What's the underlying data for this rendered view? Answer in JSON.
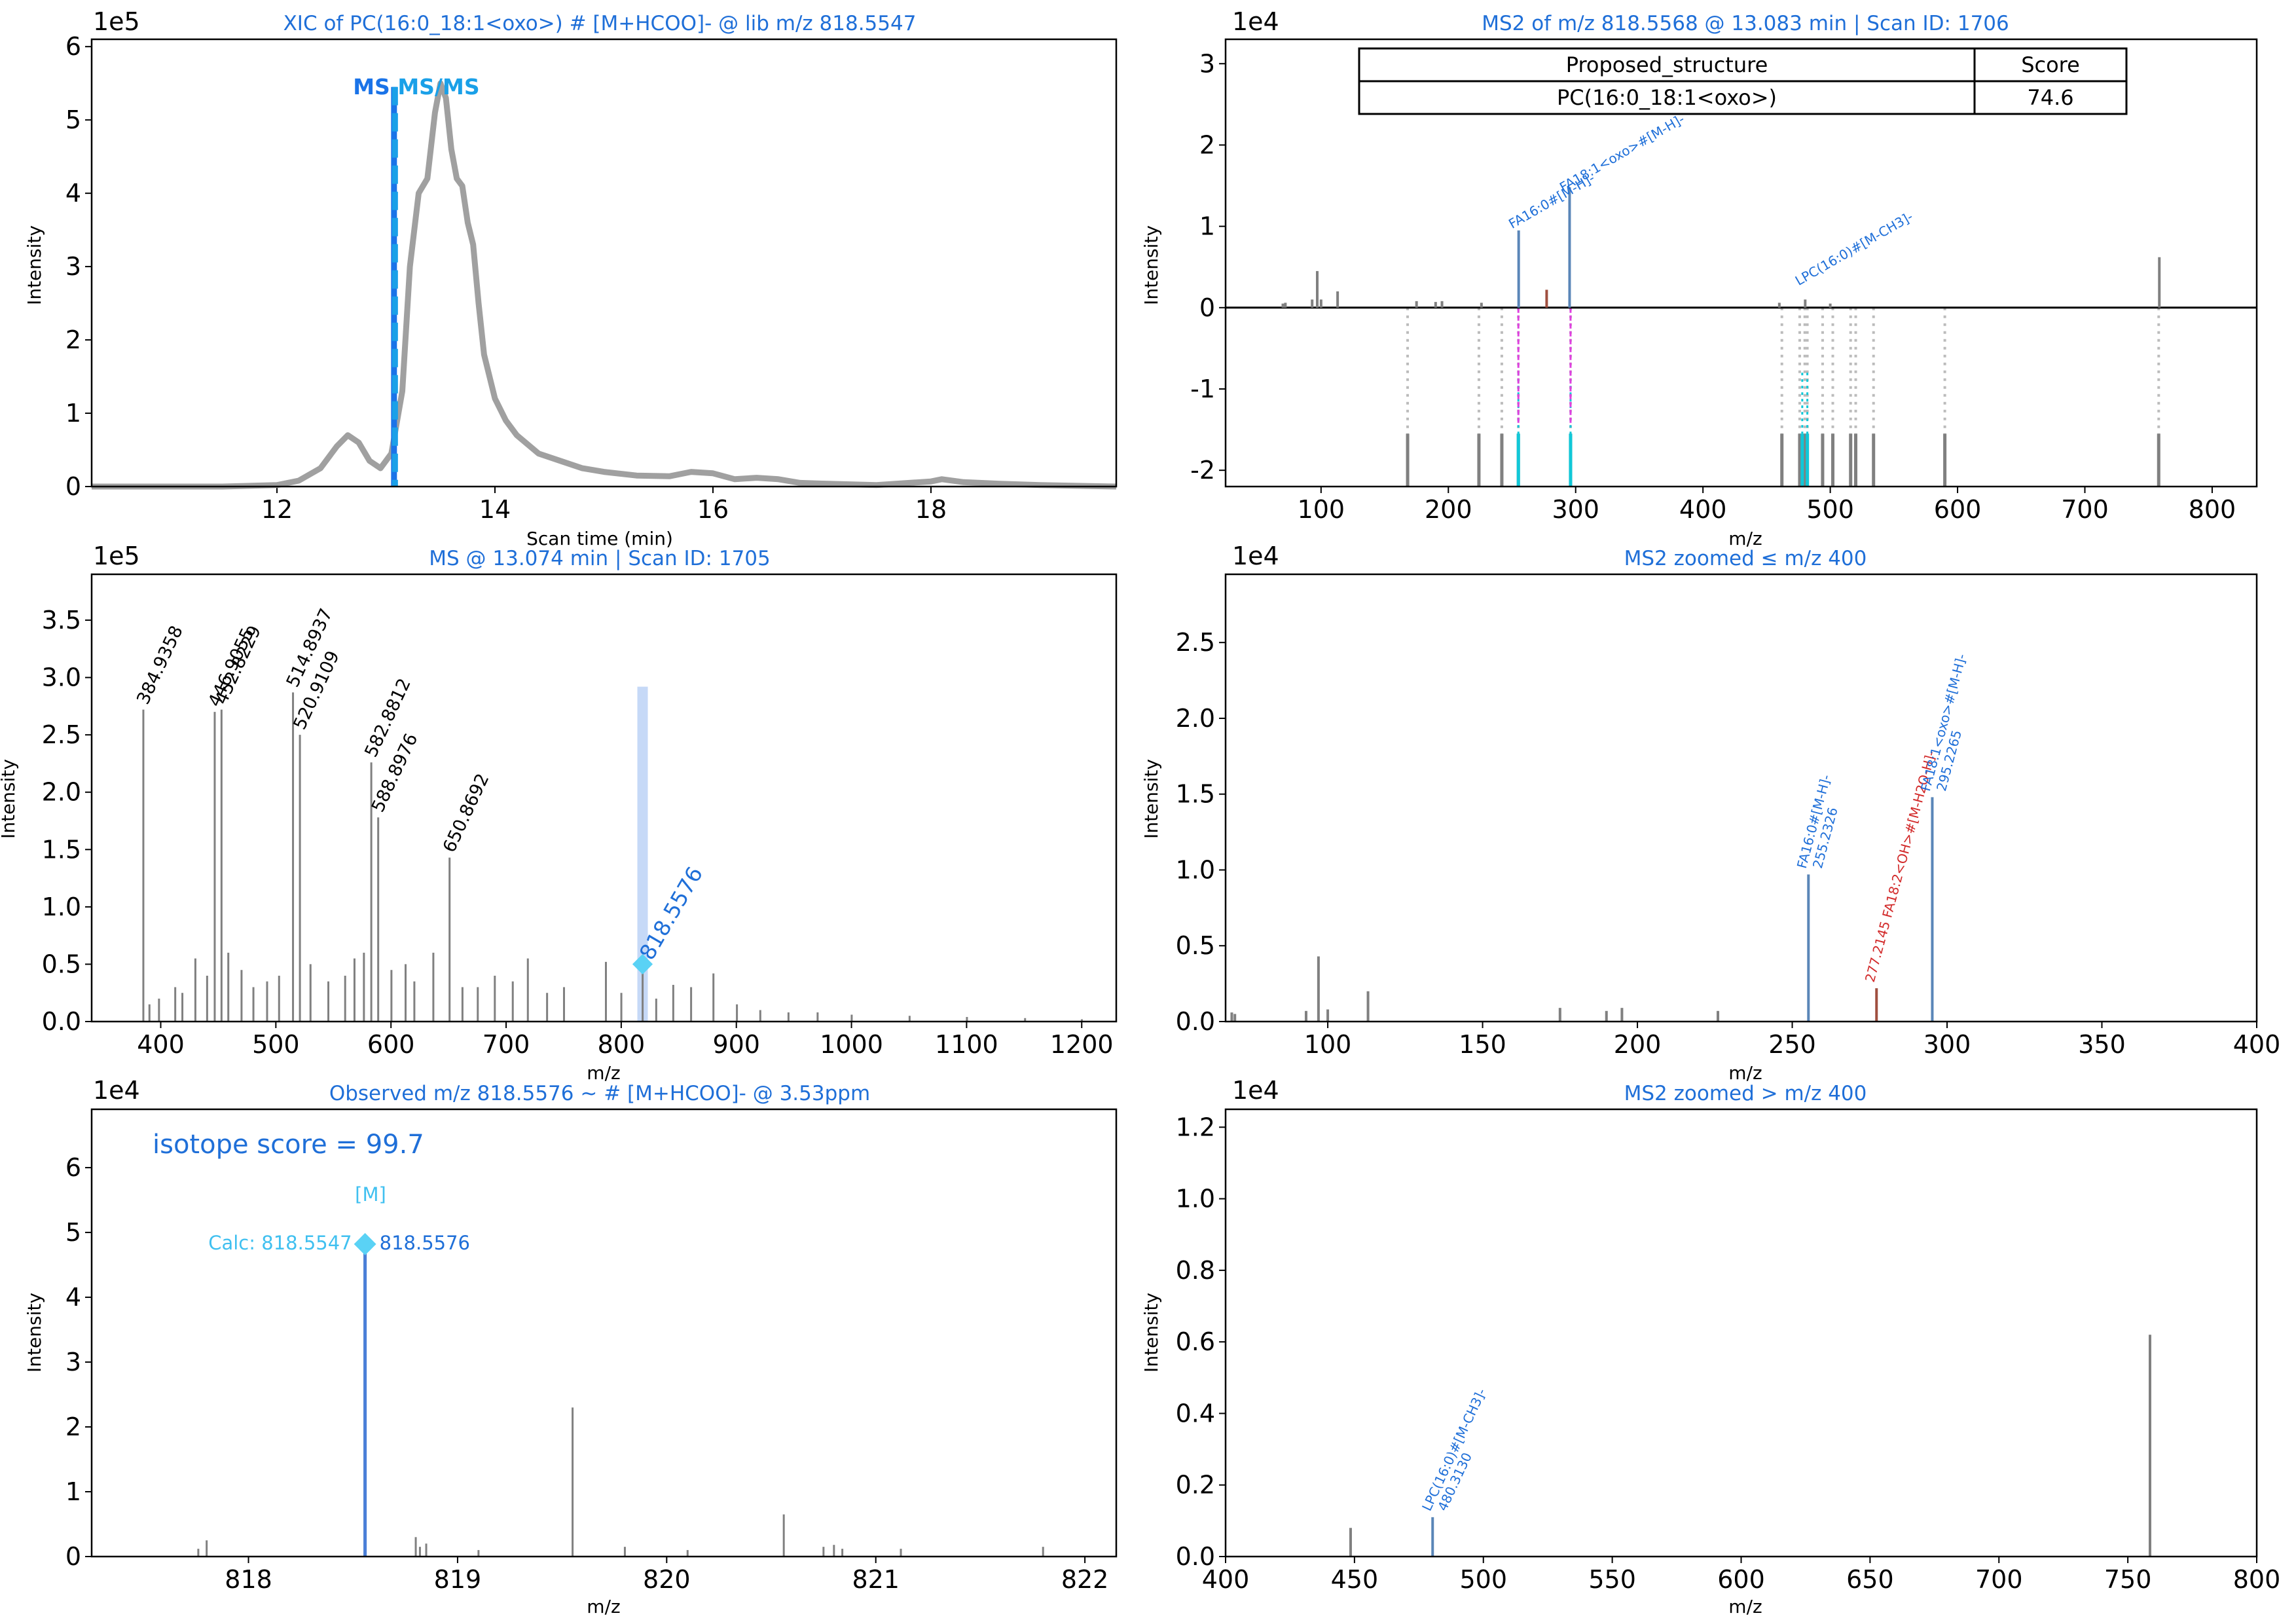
{
  "colors": {
    "spectrum": "#808080",
    "xic": "#a0a0a0",
    "title": "#1f6fd8",
    "ms_marker": "#1a73e8",
    "msms_marker": "#1aa0e8",
    "match_blue": "#5a86b8",
    "match_red": "#d22a2a",
    "precursor": "#5ad2f5",
    "ref_cyan": "#10c8d8",
    "ref_magenta": "#e040e0",
    "dotted": "#bbbbbb",
    "highlight": "#c6d9f7"
  },
  "chart_data": [
    {
      "id": "xic",
      "type": "line",
      "title": "XIC of PC(16:0_18:1<oxo>) # [M+HCOO]- @ lib m/z 818.5547",
      "xlabel": "Scan time (min)",
      "ylabel": "Intensity",
      "y_exponent": "1e5",
      "xlim": [
        10.3,
        19.7
      ],
      "ylim": [
        0,
        6.1
      ],
      "xticks": [
        12,
        14,
        16,
        18
      ],
      "yticks": [
        0,
        1,
        2,
        3,
        4,
        5,
        6
      ],
      "markers": [
        {
          "label": "MS",
          "x": 13.074
        },
        {
          "label": "MS/MS",
          "x": 13.083
        }
      ],
      "series": [
        {
          "x": [
            10.3,
            11.5,
            12.0,
            12.2,
            12.4,
            12.55,
            12.65,
            12.75,
            12.85,
            12.95,
            13.05,
            13.15,
            13.22,
            13.3,
            13.38,
            13.45,
            13.5,
            13.55,
            13.6,
            13.65,
            13.7,
            13.75,
            13.8,
            13.85,
            13.9,
            14.0,
            14.1,
            14.2,
            14.4,
            14.6,
            14.8,
            15.0,
            15.3,
            15.6,
            15.8,
            16.0,
            16.2,
            16.4,
            16.6,
            16.8,
            17.0,
            17.5,
            18.0,
            18.1,
            18.3,
            18.6,
            19.0,
            19.7
          ],
          "y": [
            0.0,
            0.0,
            0.02,
            0.08,
            0.25,
            0.55,
            0.7,
            0.6,
            0.35,
            0.25,
            0.45,
            1.3,
            3.0,
            4.0,
            4.2,
            5.1,
            5.5,
            5.3,
            4.6,
            4.2,
            4.1,
            3.6,
            3.3,
            2.5,
            1.8,
            1.2,
            0.9,
            0.7,
            0.45,
            0.35,
            0.25,
            0.2,
            0.15,
            0.14,
            0.2,
            0.18,
            0.1,
            0.12,
            0.1,
            0.05,
            0.04,
            0.02,
            0.07,
            0.1,
            0.06,
            0.04,
            0.02,
            0.0
          ]
        }
      ]
    },
    {
      "id": "ms",
      "type": "bar",
      "title": "MS @ 13.074 min | Scan ID: 1705",
      "xlabel": "m/z",
      "ylabel": "Intensity",
      "y_exponent": "1e5",
      "xlim": [
        340,
        1230
      ],
      "ylim": [
        0,
        3.9
      ],
      "xticks": [
        400,
        500,
        600,
        700,
        800,
        900,
        1000,
        1100,
        1200
      ],
      "yticks": [
        0.0,
        0.5,
        1.0,
        1.5,
        2.0,
        2.5,
        3.0,
        3.5
      ],
      "highlight": {
        "x": 818.5576,
        "height": 2.92
      },
      "precursor": {
        "x": 818.5576,
        "y": 0.5,
        "label": "818.5576"
      },
      "labels": [
        {
          "x": 384.9358,
          "y": 2.72,
          "text": "384.9358"
        },
        {
          "x": 446.9055,
          "y": 2.7,
          "text": "446.9055"
        },
        {
          "x": 452.8229,
          "y": 2.72,
          "text": "452.8229"
        },
        {
          "x": 514.8937,
          "y": 2.87,
          "text": "514.8937"
        },
        {
          "x": 520.9109,
          "y": 2.5,
          "text": "520.9109"
        },
        {
          "x": 582.8812,
          "y": 2.26,
          "text": "582.8812"
        },
        {
          "x": 588.8976,
          "y": 1.78,
          "text": "588.8976"
        },
        {
          "x": 650.8692,
          "y": 1.43,
          "text": "650.8692"
        }
      ],
      "peaks": [
        [
          384.9,
          2.72
        ],
        [
          390.2,
          0.15
        ],
        [
          398.5,
          0.2
        ],
        [
          412.6,
          0.3
        ],
        [
          418.8,
          0.25
        ],
        [
          430.1,
          0.55
        ],
        [
          440.3,
          0.4
        ],
        [
          446.9,
          2.7
        ],
        [
          452.8,
          2.72
        ],
        [
          458.7,
          0.6
        ],
        [
          470.2,
          0.45
        ],
        [
          480.5,
          0.3
        ],
        [
          492.4,
          0.35
        ],
        [
          502.8,
          0.4
        ],
        [
          514.9,
          2.87
        ],
        [
          520.9,
          2.5
        ],
        [
          530.1,
          0.5
        ],
        [
          545.6,
          0.35
        ],
        [
          560.2,
          0.4
        ],
        [
          568.3,
          0.55
        ],
        [
          576.5,
          0.6
        ],
        [
          582.9,
          2.26
        ],
        [
          588.9,
          1.78
        ],
        [
          600.4,
          0.45
        ],
        [
          612.7,
          0.5
        ],
        [
          620.3,
          0.35
        ],
        [
          636.8,
          0.6
        ],
        [
          650.9,
          1.43
        ],
        [
          662.1,
          0.3
        ],
        [
          675.4,
          0.3
        ],
        [
          690.2,
          0.4
        ],
        [
          705.8,
          0.35
        ],
        [
          718.9,
          0.55
        ],
        [
          735.6,
          0.25
        ],
        [
          750.3,
          0.3
        ],
        [
          786.7,
          0.52
        ],
        [
          800.1,
          0.25
        ],
        [
          818.6,
          0.48
        ],
        [
          830.4,
          0.2
        ],
        [
          845.2,
          0.32
        ],
        [
          860.7,
          0.3
        ],
        [
          880.1,
          0.42
        ],
        [
          900.5,
          0.15
        ],
        [
          920.8,
          0.1
        ],
        [
          945.3,
          0.08
        ],
        [
          970.6,
          0.08
        ],
        [
          1000.2,
          0.06
        ],
        [
          1050.5,
          0.05
        ],
        [
          1100.3,
          0.04
        ],
        [
          1150.8,
          0.03
        ],
        [
          1200.1,
          0.02
        ]
      ]
    },
    {
      "id": "iso",
      "type": "bar",
      "title": "Observed m/z 818.5576 ~  # [M+HCOO]- @ 3.53ppm",
      "xlabel": "m/z",
      "ylabel": "Intensity",
      "y_exponent": "1e4",
      "xlim": [
        817.25,
        822.15
      ],
      "ylim": [
        0,
        6.9
      ],
      "xticks": [
        818,
        819,
        820,
        821,
        822
      ],
      "yticks": [
        0,
        1,
        2,
        3,
        4,
        5,
        6
      ],
      "isotope_score": "isotope score = 99.7",
      "theo_label": "[M]",
      "calc_label": "Calc: 818.5547",
      "obs_label": "818.5576",
      "precursor": {
        "x": 818.5576,
        "y": 4.82
      },
      "peaks": [
        [
          817.76,
          0.12
        ],
        [
          817.8,
          0.25
        ],
        [
          818.555,
          4.82
        ],
        [
          818.8,
          0.3
        ],
        [
          818.82,
          0.15
        ],
        [
          818.85,
          0.2
        ],
        [
          819.1,
          0.1
        ],
        [
          819.55,
          2.3
        ],
        [
          819.8,
          0.15
        ],
        [
          820.1,
          0.1
        ],
        [
          820.56,
          0.65
        ],
        [
          820.75,
          0.15
        ],
        [
          820.8,
          0.18
        ],
        [
          820.84,
          0.12
        ],
        [
          821.12,
          0.12
        ],
        [
          821.8,
          0.15
        ]
      ]
    },
    {
      "id": "ms2",
      "type": "bar",
      "title": "MS2 of m/z 818.5568 @ 13.083 min | Scan ID: 1706",
      "xlabel": "m/z",
      "ylabel": "Intensity",
      "y_exponent": "1e4",
      "xlim": [
        25,
        835
      ],
      "ylim": [
        -2.2,
        3.3
      ],
      "xticks": [
        100,
        200,
        300,
        400,
        500,
        600,
        700,
        800
      ],
      "yticks": [
        -2,
        -1,
        0,
        1,
        2,
        3
      ],
      "table": {
        "headers": [
          "Proposed_structure",
          "Score"
        ],
        "rows": [
          [
            "PC(16:0_18:1<oxo>)",
            "74.6"
          ]
        ]
      },
      "annotations": [
        {
          "x": 255.23,
          "y": 1.0,
          "text": "FA16:0#[M-H]-"
        },
        {
          "x": 295.23,
          "y": 1.45,
          "text": "FA18:1<oxo>#[M-H]-"
        },
        {
          "x": 480.31,
          "y": 0.3,
          "text": "LPC(16:0)#[M-CH3]-"
        }
      ],
      "peaks": [
        [
          70,
          0.05
        ],
        [
          72,
          0.06
        ],
        [
          93,
          0.1
        ],
        [
          97,
          0.45
        ],
        [
          100,
          0.1
        ],
        [
          113,
          0.2
        ],
        [
          175,
          0.08
        ],
        [
          190,
          0.07
        ],
        [
          195,
          0.08
        ],
        [
          226,
          0.06
        ],
        [
          255.23,
          0.95
        ],
        [
          277.21,
          0.22
        ],
        [
          295.23,
          1.48
        ],
        [
          460,
          0.06
        ],
        [
          480.31,
          0.1
        ],
        [
          500,
          0.05
        ],
        [
          758.5,
          0.62
        ]
      ],
      "ref_peaks": [
        168,
        224,
        242,
        255,
        296,
        462,
        476,
        480,
        482,
        494,
        502,
        516,
        520,
        534,
        590,
        758
      ],
      "ref_highlight": [
        {
          "x": 255,
          "color": "cyan"
        },
        {
          "x": 296,
          "color": "cyan"
        },
        {
          "x": 478,
          "color": "cyan"
        },
        {
          "x": 482,
          "color": "cyan"
        }
      ]
    },
    {
      "id": "ms2low",
      "type": "bar",
      "title": "MS2 zoomed ≤ m/z 400",
      "xlabel": "m/z",
      "ylabel": "Intensity",
      "y_exponent": "1e4",
      "xlim": [
        67,
        400
      ],
      "ylim": [
        0,
        2.95
      ],
      "xticks": [
        100,
        150,
        200,
        250,
        300,
        350,
        400
      ],
      "yticks": [
        0.0,
        0.5,
        1.0,
        1.5,
        2.0,
        2.5
      ],
      "annotations": [
        {
          "x": 255.2326,
          "y": 0.97,
          "lines": [
            "FA16:0#[M-H]-",
            "255.2326"
          ],
          "color": "blue"
        },
        {
          "x": 277.2145,
          "y": 0.22,
          "lines": [
            "277.2145 FA18:2<OH>#[M-H2O-H]-"
          ],
          "color": "red"
        },
        {
          "x": 295.2265,
          "y": 1.48,
          "lines": [
            "FA18:1<oxo>#[M-H]-",
            "295.2265"
          ],
          "color": "blue"
        }
      ],
      "peaks": [
        [
          69,
          0.06
        ],
        [
          70,
          0.05
        ],
        [
          93,
          0.07
        ],
        [
          97,
          0.43
        ],
        [
          100,
          0.08
        ],
        [
          113,
          0.2
        ],
        [
          175,
          0.09
        ],
        [
          190,
          0.07
        ],
        [
          195,
          0.09
        ],
        [
          226,
          0.07
        ],
        [
          255.2326,
          0.97
        ],
        [
          277.2145,
          0.22
        ],
        [
          295.2265,
          1.48
        ]
      ]
    },
    {
      "id": "ms2high",
      "type": "bar",
      "title": "MS2 zoomed > m/z 400",
      "xlabel": "m/z",
      "ylabel": "Intensity",
      "y_exponent": "1e4",
      "xlim": [
        400,
        800
      ],
      "ylim": [
        0,
        1.25
      ],
      "xticks": [
        400,
        450,
        500,
        550,
        600,
        650,
        700,
        750,
        800
      ],
      "yticks": [
        0.0,
        0.2,
        0.4,
        0.6,
        0.8,
        1.0,
        1.2
      ],
      "annotations": [
        {
          "x": 480.313,
          "y": 0.11,
          "lines": [
            "LPC(16:0)#[M-CH3]-",
            "480.3130"
          ],
          "color": "blue"
        }
      ],
      "peaks": [
        [
          448.5,
          0.08
        ],
        [
          480.313,
          0.11
        ],
        [
          758.6,
          0.62
        ]
      ]
    }
  ]
}
